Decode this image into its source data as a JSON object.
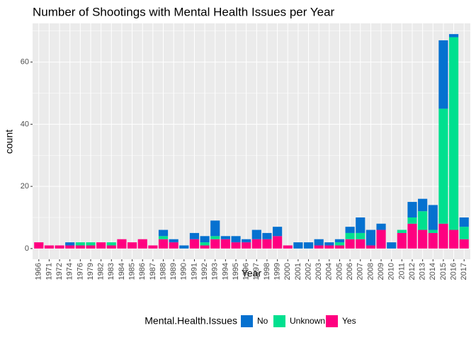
{
  "chart_data": {
    "type": "bar",
    "stacked": true,
    "title": "Number of Shootings with Mental Health Issues per Year",
    "x_label": "Year",
    "y_label": "count",
    "legend_title": "Mental.Health.Issues",
    "legend_position": "bottom",
    "grid": true,
    "categories": [
      "1966",
      "1971",
      "1972",
      "1974",
      "1976",
      "1979",
      "1982",
      "1983",
      "1984",
      "1985",
      "1986",
      "1987",
      "1988",
      "1989",
      "1990",
      "1991",
      "1992",
      "1993",
      "1994",
      "1995",
      "1996",
      "1997",
      "1998",
      "1999",
      "2000",
      "2001",
      "2002",
      "2003",
      "2004",
      "2005",
      "2006",
      "2007",
      "2008",
      "2009",
      "2010",
      "2011",
      "2012",
      "2013",
      "2014",
      "2015",
      "2016",
      "2017"
    ],
    "series": [
      {
        "name": "No",
        "color": "#0571d0",
        "values": [
          0,
          0,
          0,
          1,
          0,
          0,
          0,
          0,
          0,
          0,
          0,
          0,
          2,
          1,
          1,
          2,
          2,
          5,
          1,
          2,
          1,
          3,
          2,
          3,
          0,
          2,
          2,
          2,
          1,
          1,
          2,
          5,
          5,
          2,
          2,
          0,
          5,
          4,
          8,
          22,
          1,
          3
        ]
      },
      {
        "name": "Unknown",
        "color": "#00e08f",
        "values": [
          0,
          0,
          0,
          0,
          1,
          1,
          0,
          1,
          0,
          0,
          0,
          0,
          1,
          0,
          0,
          0,
          1,
          1,
          0,
          0,
          0,
          0,
          0,
          0,
          0,
          0,
          0,
          0,
          0,
          1,
          2,
          2,
          0,
          0,
          0,
          1,
          2,
          6,
          1,
          37,
          62,
          4
        ]
      },
      {
        "name": "Yes",
        "color": "#ff0080",
        "values": [
          2,
          1,
          1,
          1,
          1,
          1,
          2,
          1,
          3,
          2,
          3,
          1,
          3,
          2,
          0,
          3,
          1,
          3,
          3,
          2,
          2,
          3,
          3,
          4,
          1,
          0,
          0,
          1,
          1,
          1,
          3,
          3,
          1,
          6,
          0,
          5,
          8,
          6,
          5,
          8,
          6,
          3
        ]
      }
    ],
    "ylim": [
      -3.45,
      72.45
    ],
    "yticks": [
      0,
      20,
      40,
      60
    ],
    "minor_yticks": [
      10,
      30,
      50,
      70
    ]
  }
}
